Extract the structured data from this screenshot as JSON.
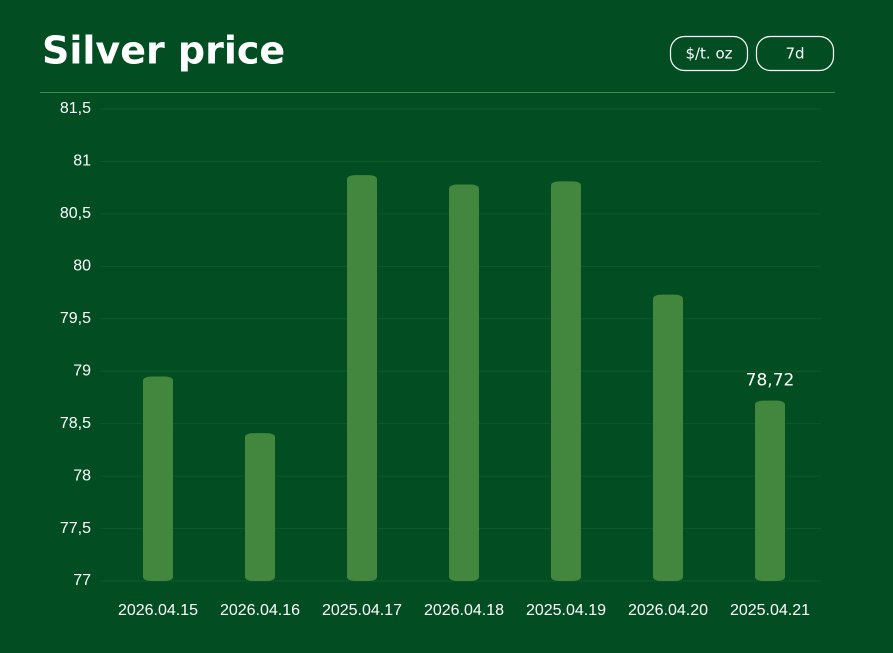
{
  "chart_data": {
    "type": "bar",
    "title": "Silver price",
    "controls": [
      "$/t. oz",
      "7d"
    ],
    "categories": [
      "2026.04.15",
      "2026.04.16",
      "2025.04.17",
      "2026.04.18",
      "2025.04.19",
      "2026.04.20",
      "2025.04.21"
    ],
    "values": [
      78.95,
      78.41,
      80.87,
      80.78,
      80.81,
      79.73,
      78.72
    ],
    "value_labels": [
      null,
      null,
      null,
      null,
      null,
      null,
      "78,72"
    ],
    "color": "#43873f",
    "ylim": [
      77,
      81.5
    ],
    "yticks": [
      77,
      {
        "value": 77.5,
        "label": "77,5"
      },
      78,
      {
        "value": 78.5,
        "label": "78,5"
      },
      79,
      {
        "value": 79.5,
        "label": "79,5"
      },
      80,
      {
        "value": 80.5,
        "label": "80,5"
      },
      81,
      {
        "value": 81.5,
        "label": "81,5"
      }
    ],
    "grid": true
  }
}
